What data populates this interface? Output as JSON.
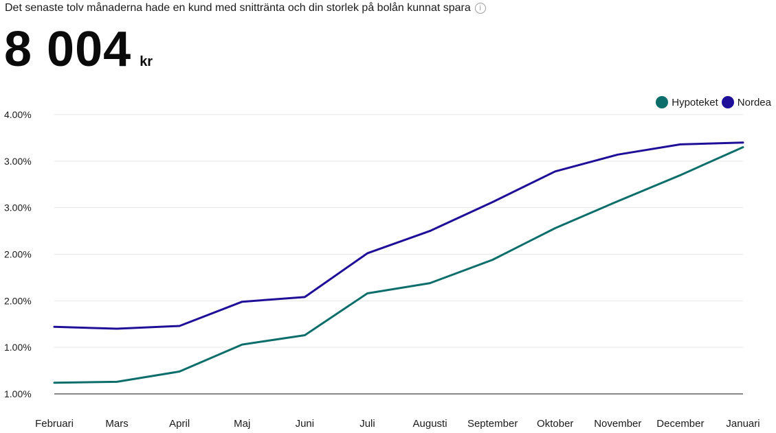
{
  "header": {
    "text": "Det senaste tolv månaderna hade en kund med snittränta och din storlek på bolån kunnat spara",
    "info_icon": "info-circle-icon"
  },
  "savings": {
    "value": "8 004",
    "unit": "kr"
  },
  "colors": {
    "hypoteket": "#0c6e6b",
    "nordea": "#1e0e98",
    "grid": "#e6e6e6",
    "baseline": "#111111"
  },
  "chart_data": {
    "type": "line",
    "categories": [
      "Februari",
      "Mars",
      "April",
      "Maj",
      "Juni",
      "Juli",
      "Augusti",
      "September",
      "Oktober",
      "November",
      "December",
      "Januari"
    ],
    "y_tick_labels": [
      "1.00%",
      "1.00%",
      "2.00%",
      "2.00%",
      "3.00%",
      "3.00%",
      "4.00%"
    ],
    "ylim": [
      1.0,
      4.0
    ],
    "grid": true,
    "legend_position": "top-right",
    "series": [
      {
        "name": "Hypoteket",
        "color": "#0c6e6b",
        "values": [
          1.12,
          1.13,
          1.24,
          1.53,
          1.63,
          2.08,
          2.19,
          2.44,
          2.78,
          3.07,
          3.35,
          3.65
        ]
      },
      {
        "name": "Nordea",
        "color": "#1e0e98",
        "values": [
          1.72,
          1.7,
          1.73,
          1.99,
          2.04,
          2.51,
          2.75,
          3.06,
          3.39,
          3.57,
          3.68,
          3.7
        ]
      }
    ]
  }
}
